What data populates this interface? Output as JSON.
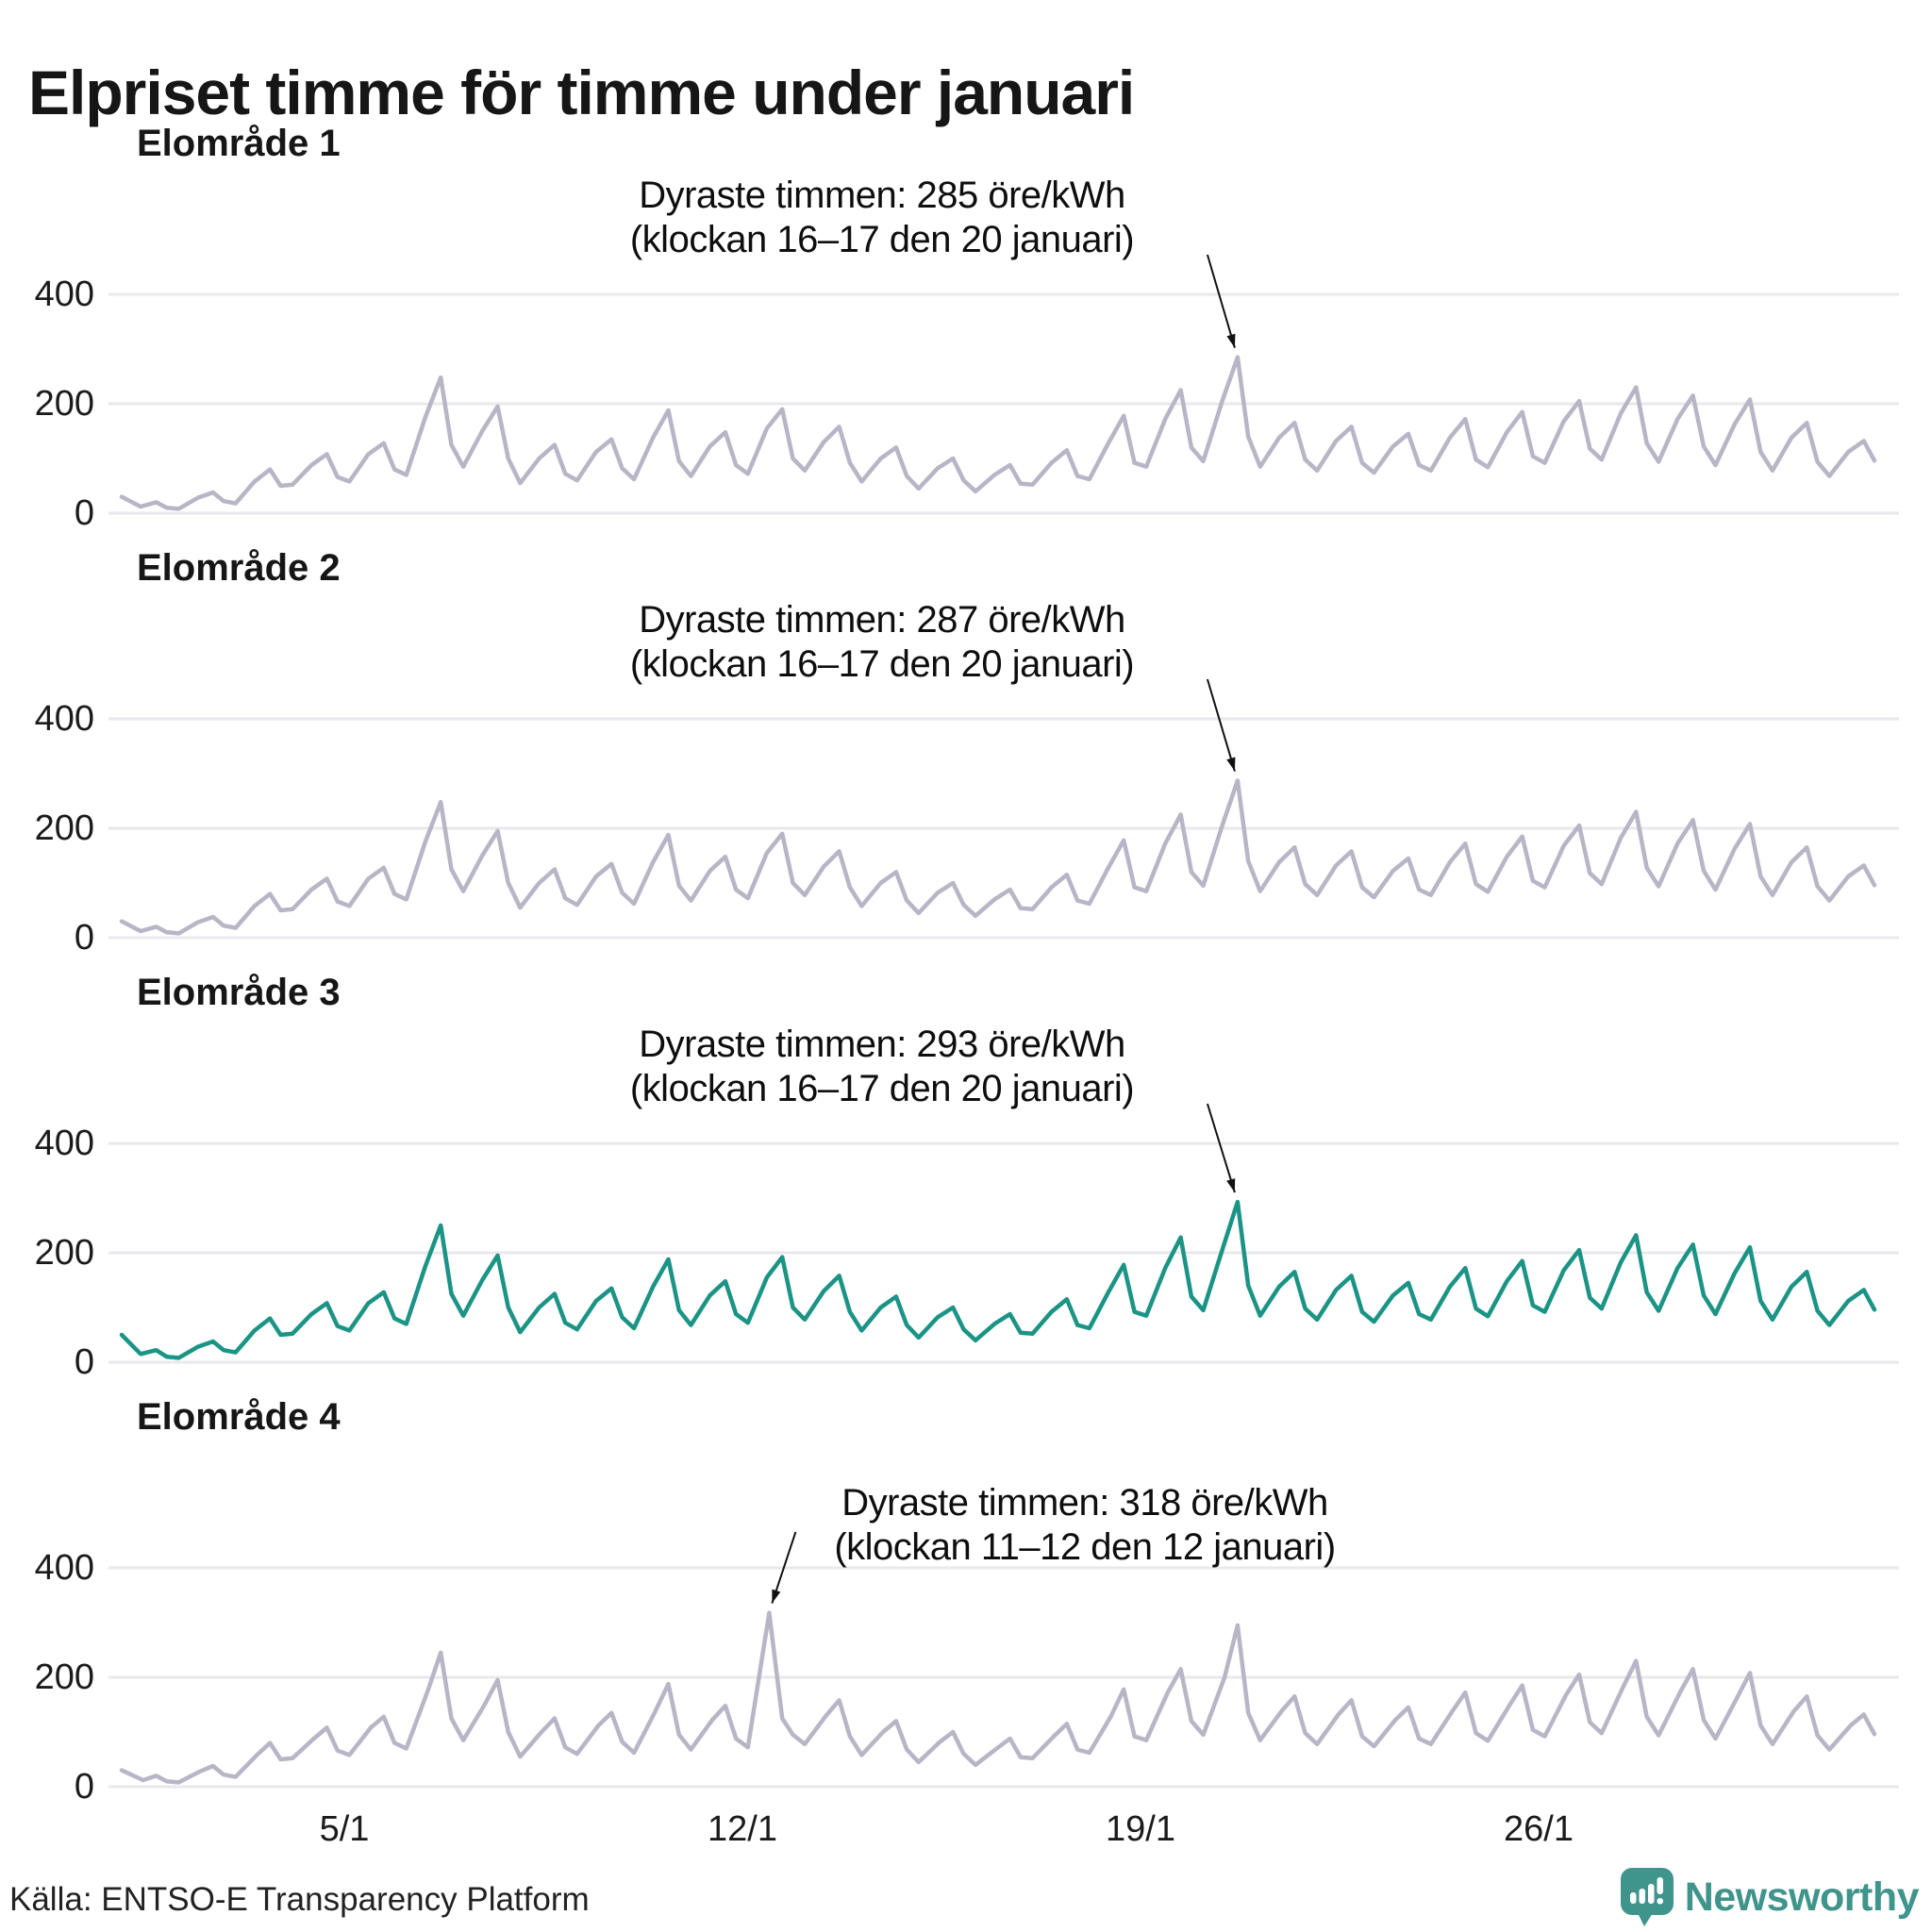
{
  "title": "Elpriset timme för timme under januari",
  "footer": {
    "source": "Källa: ENTSO-E Transparency Platform",
    "brand": "Newsworthy"
  },
  "colors": {
    "line_default": "#b8b5c6",
    "line_highlight": "#1b9486",
    "grid": "#e9e9ed",
    "annotation_arrow": "#111111",
    "brand_teal": "#3f948b"
  },
  "axes": {
    "unit": "öre/kWh",
    "ylim": [
      0,
      460
    ],
    "yvalues": [
      400,
      200,
      0
    ],
    "ytick_labels": [
      "400",
      "200",
      "0"
    ],
    "xtick_labels": [
      "5/1",
      "12/1",
      "19/1",
      "26/1"
    ],
    "xtick_days": [
      5,
      12,
      19,
      26
    ],
    "grid": true
  },
  "chart_data": [
    {
      "type": "line",
      "area": "Elområde 1",
      "unit": "öre/kWh",
      "color_key": "line_default",
      "annotation": {
        "line1": "Dyraste timmen: 285 öre/kWh",
        "line2": "(klockan 16–17 den 20 januari)",
        "peak_value": 285,
        "peak_day": 20,
        "peak_hour": 16.5,
        "arrow": "right"
      },
      "sample_hours": [
        2,
        10,
        16.5,
        21
      ],
      "daily": [
        [
          30,
          12,
          20,
          10
        ],
        [
          8,
          28,
          38,
          22
        ],
        [
          18,
          58,
          80,
          50
        ],
        [
          52,
          88,
          108,
          66
        ],
        [
          58,
          108,
          128,
          80
        ],
        [
          70,
          175,
          248,
          125
        ],
        [
          85,
          150,
          195,
          100
        ],
        [
          55,
          100,
          125,
          72
        ],
        [
          60,
          112,
          135,
          82
        ],
        [
          62,
          138,
          188,
          95
        ],
        [
          68,
          122,
          148,
          88
        ],
        [
          72,
          155,
          190,
          100
        ],
        [
          78,
          130,
          158,
          92
        ],
        [
          58,
          100,
          120,
          68
        ],
        [
          45,
          82,
          100,
          60
        ],
        [
          40,
          70,
          88,
          54
        ],
        [
          52,
          92,
          115,
          68
        ],
        [
          62,
          128,
          178,
          92
        ],
        [
          85,
          172,
          225,
          120
        ],
        [
          95,
          205,
          285,
          140
        ],
        [
          85,
          138,
          165,
          98
        ],
        [
          78,
          132,
          158,
          92
        ],
        [
          74,
          122,
          145,
          88
        ],
        [
          78,
          138,
          172,
          98
        ],
        [
          84,
          148,
          185,
          104
        ],
        [
          92,
          168,
          205,
          118
        ],
        [
          98,
          182,
          230,
          128
        ],
        [
          94,
          172,
          215,
          122
        ],
        [
          88,
          162,
          208,
          112
        ],
        [
          78,
          138,
          165,
          94
        ],
        [
          68,
          112,
          132,
          96
        ]
      ]
    },
    {
      "type": "line",
      "area": "Elområde 2",
      "unit": "öre/kWh",
      "color_key": "line_default",
      "annotation": {
        "line1": "Dyraste timmen: 287 öre/kWh",
        "line2": "(klockan 16–17 den 20 januari)",
        "peak_value": 287,
        "peak_day": 20,
        "peak_hour": 16.5,
        "arrow": "right"
      },
      "sample_hours": [
        2,
        10,
        16.5,
        21
      ],
      "daily": [
        [
          30,
          12,
          20,
          10
        ],
        [
          8,
          28,
          38,
          22
        ],
        [
          18,
          58,
          80,
          50
        ],
        [
          52,
          88,
          108,
          66
        ],
        [
          58,
          108,
          128,
          80
        ],
        [
          70,
          175,
          248,
          125
        ],
        [
          85,
          150,
          195,
          100
        ],
        [
          55,
          100,
          125,
          72
        ],
        [
          60,
          112,
          135,
          82
        ],
        [
          62,
          138,
          188,
          95
        ],
        [
          68,
          122,
          148,
          88
        ],
        [
          72,
          155,
          190,
          100
        ],
        [
          78,
          130,
          158,
          92
        ],
        [
          58,
          100,
          120,
          68
        ],
        [
          45,
          82,
          100,
          60
        ],
        [
          40,
          70,
          88,
          54
        ],
        [
          52,
          92,
          115,
          68
        ],
        [
          62,
          128,
          178,
          92
        ],
        [
          85,
          172,
          225,
          120
        ],
        [
          95,
          205,
          287,
          140
        ],
        [
          85,
          138,
          165,
          98
        ],
        [
          78,
          132,
          158,
          92
        ],
        [
          74,
          122,
          145,
          88
        ],
        [
          78,
          138,
          172,
          98
        ],
        [
          84,
          148,
          185,
          104
        ],
        [
          92,
          168,
          205,
          118
        ],
        [
          98,
          182,
          230,
          128
        ],
        [
          94,
          172,
          215,
          122
        ],
        [
          88,
          162,
          208,
          112
        ],
        [
          78,
          138,
          165,
          94
        ],
        [
          68,
          112,
          132,
          96
        ]
      ]
    },
    {
      "type": "line",
      "area": "Elområde 3",
      "unit": "öre/kWh",
      "color_key": "line_highlight",
      "annotation": {
        "line1": "Dyraste timmen: 293 öre/kWh",
        "line2": "(klockan 16–17 den 20 januari)",
        "peak_value": 293,
        "peak_day": 20,
        "peak_hour": 16.5,
        "arrow": "right"
      },
      "sample_hours": [
        2,
        10,
        16.5,
        21
      ],
      "daily": [
        [
          50,
          15,
          22,
          10
        ],
        [
          8,
          28,
          38,
          22
        ],
        [
          18,
          58,
          80,
          50
        ],
        [
          52,
          88,
          108,
          66
        ],
        [
          58,
          108,
          128,
          80
        ],
        [
          70,
          175,
          250,
          125
        ],
        [
          85,
          150,
          195,
          100
        ],
        [
          55,
          100,
          125,
          72
        ],
        [
          60,
          112,
          135,
          82
        ],
        [
          62,
          138,
          188,
          95
        ],
        [
          68,
          122,
          148,
          88
        ],
        [
          72,
          155,
          192,
          100
        ],
        [
          78,
          130,
          158,
          92
        ],
        [
          58,
          100,
          120,
          68
        ],
        [
          45,
          82,
          100,
          60
        ],
        [
          40,
          70,
          88,
          54
        ],
        [
          52,
          92,
          115,
          68
        ],
        [
          62,
          128,
          178,
          92
        ],
        [
          85,
          172,
          228,
          120
        ],
        [
          95,
          205,
          293,
          140
        ],
        [
          85,
          138,
          165,
          98
        ],
        [
          78,
          132,
          158,
          92
        ],
        [
          74,
          122,
          145,
          88
        ],
        [
          78,
          138,
          172,
          98
        ],
        [
          84,
          148,
          185,
          104
        ],
        [
          92,
          168,
          205,
          118
        ],
        [
          98,
          182,
          232,
          128
        ],
        [
          94,
          172,
          215,
          122
        ],
        [
          88,
          162,
          210,
          112
        ],
        [
          78,
          138,
          165,
          94
        ],
        [
          68,
          112,
          132,
          96
        ]
      ]
    },
    {
      "type": "line",
      "area": "Elområde 4",
      "unit": "öre/kWh",
      "color_key": "line_default",
      "annotation": {
        "line1": "Dyraste timmen: 318 öre/kWh",
        "line2": "(klockan 11–12 den 12 januari)",
        "peak_value": 318,
        "peak_day": 12,
        "peak_hour": 11,
        "arrow": "left"
      },
      "sample_hours": [
        2,
        11,
        16.5,
        21
      ],
      "daily": [
        [
          30,
          12,
          20,
          10
        ],
        [
          8,
          28,
          38,
          22
        ],
        [
          18,
          58,
          80,
          50
        ],
        [
          52,
          88,
          108,
          66
        ],
        [
          58,
          108,
          128,
          80
        ],
        [
          70,
          175,
          245,
          125
        ],
        [
          85,
          150,
          195,
          100
        ],
        [
          55,
          100,
          125,
          72
        ],
        [
          60,
          112,
          135,
          82
        ],
        [
          62,
          138,
          188,
          95
        ],
        [
          68,
          122,
          148,
          88
        ],
        [
          72,
          318,
          125,
          95
        ],
        [
          78,
          130,
          158,
          92
        ],
        [
          58,
          100,
          120,
          68
        ],
        [
          45,
          82,
          100,
          60
        ],
        [
          40,
          70,
          88,
          54
        ],
        [
          52,
          92,
          115,
          68
        ],
        [
          62,
          128,
          178,
          92
        ],
        [
          85,
          172,
          215,
          120
        ],
        [
          95,
          200,
          295,
          135
        ],
        [
          85,
          138,
          165,
          98
        ],
        [
          78,
          132,
          158,
          92
        ],
        [
          74,
          122,
          145,
          88
        ],
        [
          78,
          138,
          172,
          98
        ],
        [
          84,
          148,
          185,
          104
        ],
        [
          92,
          168,
          205,
          118
        ],
        [
          98,
          182,
          230,
          128
        ],
        [
          94,
          172,
          215,
          122
        ],
        [
          88,
          162,
          208,
          112
        ],
        [
          78,
          138,
          165,
          94
        ],
        [
          68,
          112,
          132,
          96
        ]
      ]
    }
  ]
}
